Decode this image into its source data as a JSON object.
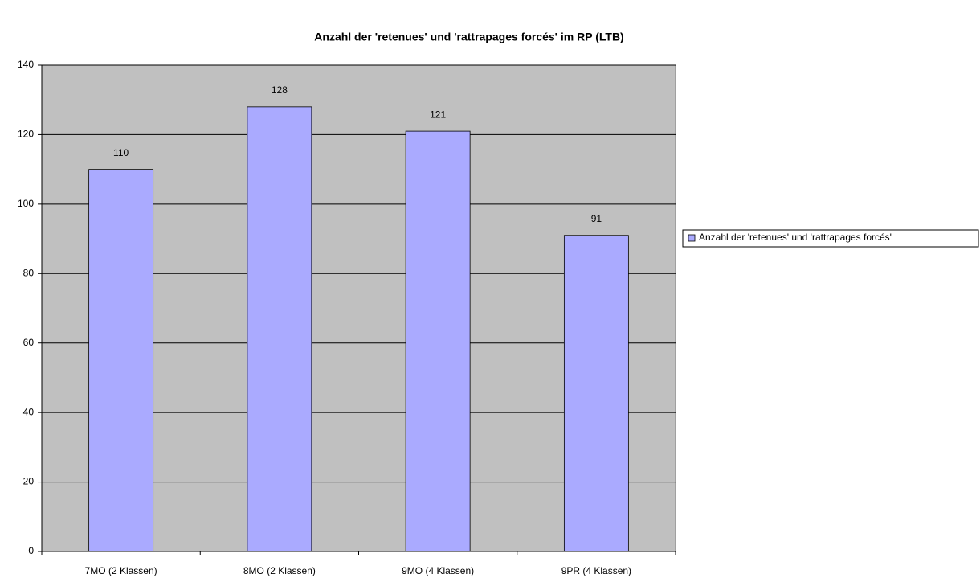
{
  "chart_data": {
    "type": "bar",
    "title": "Anzahl der 'retenues' und 'rattrapages forcés' im RP (LTB)",
    "categories": [
      "7MO (2 Klassen)",
      "8MO (2 Klassen)",
      "9MO (4 Klassen)",
      "9PR (4 Klassen)"
    ],
    "series": [
      {
        "name": "Anzahl der 'retenues' und 'rattrapages forcés'",
        "color": "#aaaaff",
        "values": [
          110,
          128,
          121,
          91
        ]
      }
    ],
    "ylim": [
      0,
      140
    ],
    "yticks": [
      0,
      20,
      40,
      60,
      80,
      100,
      120,
      140
    ],
    "grid": true,
    "legend": "right"
  }
}
